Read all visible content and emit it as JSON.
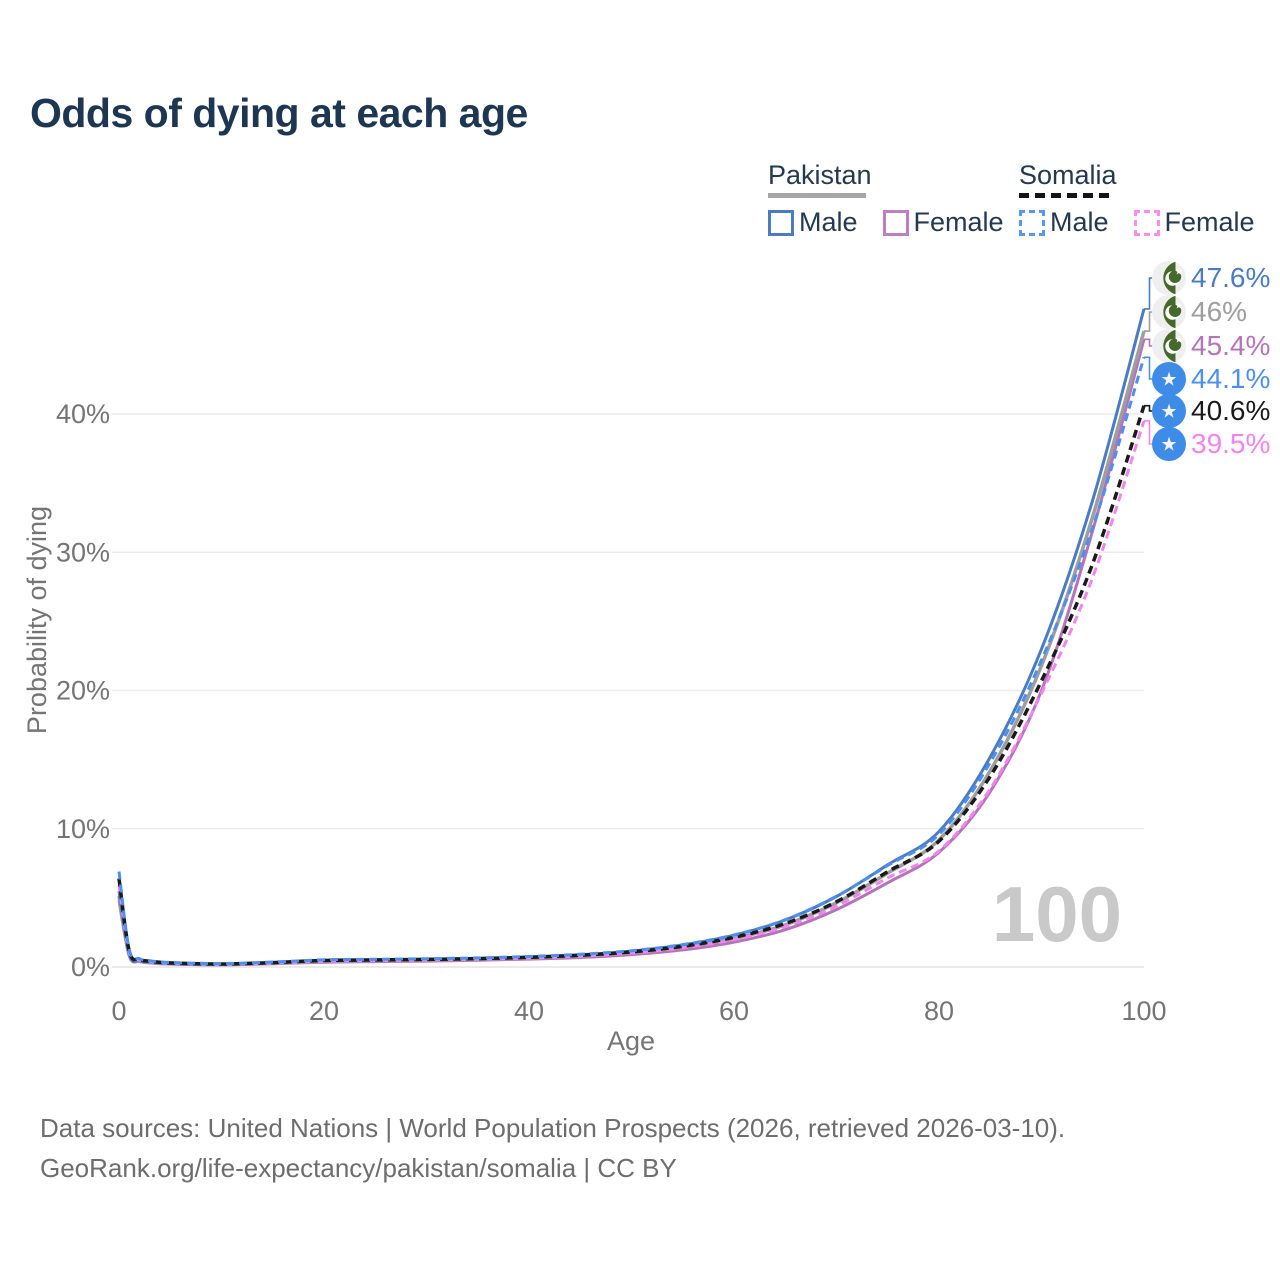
{
  "title": "Odds of dying at each age",
  "legend": {
    "groups": [
      {
        "country": "Pakistan",
        "style": "solid",
        "items": [
          {
            "label": "Male",
            "color": "#4a7cc4"
          },
          {
            "label": "Female",
            "color": "#bb80c2"
          }
        ]
      },
      {
        "country": "Somalia",
        "style": "dashed",
        "items": [
          {
            "label": "Male",
            "color": "#5796f2"
          },
          {
            "label": "Female",
            "color": "#fb8df2"
          }
        ]
      }
    ],
    "underline_colors": {
      "pakistan": "#a6a6a6",
      "somalia": "#151515"
    }
  },
  "chart_data": {
    "type": "line",
    "title": "Odds of dying at each age",
    "xlabel": "Age",
    "ylabel": "Probability of dying",
    "xlim": [
      0,
      100
    ],
    "ylim_percent": [
      0,
      48
    ],
    "grid": "horizontal",
    "legend_position": "top-right",
    "watermark": "100",
    "xticks": [
      "0",
      "20",
      "40",
      "60",
      "80",
      "100"
    ],
    "yticks": [
      "0%",
      "10%",
      "20%",
      "30%",
      "40%"
    ],
    "ages": [
      0,
      1,
      2,
      3,
      5,
      10,
      15,
      20,
      25,
      30,
      35,
      40,
      45,
      50,
      55,
      60,
      65,
      70,
      75,
      80,
      85,
      90,
      95,
      100
    ],
    "series": [
      {
        "name": "Pakistan Male",
        "country": "Pakistan",
        "sex": "male",
        "color": "#4a7cc4",
        "dash": false,
        "width": 3,
        "values_percent": [
          5.5,
          0.9,
          0.45,
          0.35,
          0.25,
          0.2,
          0.3,
          0.48,
          0.52,
          0.56,
          0.62,
          0.72,
          0.88,
          1.15,
          1.6,
          2.3,
          3.4,
          5.1,
          7.4,
          9.8,
          15.2,
          23.0,
          33.8,
          47.6
        ]
      },
      {
        "name": "Pakistan Total",
        "country": "Pakistan",
        "sex": "both",
        "color": "#9e9e9e",
        "dash": false,
        "width": 3.5,
        "values_percent": [
          5.15,
          0.85,
          0.42,
          0.32,
          0.23,
          0.18,
          0.27,
          0.42,
          0.46,
          0.5,
          0.56,
          0.65,
          0.79,
          1.03,
          1.42,
          2.05,
          3.05,
          4.65,
          6.8,
          9.2,
          14.2,
          21.8,
          32.6,
          46.0
        ]
      },
      {
        "name": "Pakistan Female",
        "country": "Pakistan",
        "sex": "female",
        "color": "#b573bd",
        "dash": false,
        "width": 3,
        "values_percent": [
          4.8,
          0.8,
          0.4,
          0.3,
          0.21,
          0.16,
          0.23,
          0.35,
          0.39,
          0.43,
          0.49,
          0.57,
          0.69,
          0.9,
          1.24,
          1.8,
          2.7,
          4.15,
          6.1,
          8.3,
          12.7,
          20.0,
          31.6,
          45.4
        ]
      },
      {
        "name": "Somalia Male",
        "country": "Somalia",
        "sex": "male",
        "color": "#4b90f0",
        "dash": true,
        "width": 3,
        "values_percent": [
          6.9,
          1.25,
          0.6,
          0.45,
          0.33,
          0.25,
          0.36,
          0.52,
          0.56,
          0.6,
          0.66,
          0.76,
          0.92,
          1.18,
          1.62,
          2.32,
          3.42,
          5.12,
          7.35,
          9.6,
          14.8,
          22.2,
          31.8,
          44.1
        ]
      },
      {
        "name": "Somalia Total",
        "country": "Somalia",
        "sex": "both",
        "color": "#1a1a1a",
        "dash": true,
        "width": 3.5,
        "values_percent": [
          6.4,
          1.15,
          0.55,
          0.42,
          0.3,
          0.22,
          0.32,
          0.47,
          0.51,
          0.55,
          0.61,
          0.7,
          0.85,
          1.09,
          1.5,
          2.15,
          3.15,
          4.72,
          6.9,
          9.1,
          13.8,
          20.7,
          29.2,
          40.6
        ]
      },
      {
        "name": "Somalia Female",
        "country": "Somalia",
        "sex": "female",
        "color": "#f583ef",
        "dash": true,
        "width": 3,
        "values_percent": [
          5.9,
          1.05,
          0.5,
          0.38,
          0.28,
          0.2,
          0.29,
          0.43,
          0.47,
          0.51,
          0.57,
          0.65,
          0.79,
          1.01,
          1.39,
          1.98,
          2.92,
          4.4,
          6.45,
          8.4,
          12.9,
          19.8,
          28.2,
          39.5
        ]
      }
    ],
    "end_labels": [
      {
        "text": "47.6%",
        "flag": "pakistan",
        "color": "#4a7cc4",
        "series": "Pakistan Male"
      },
      {
        "text": "46%",
        "flag": "pakistan",
        "color": "#9e9e9e",
        "series": "Pakistan Total"
      },
      {
        "text": "45.4%",
        "flag": "pakistan",
        "color": "#b573bd",
        "series": "Pakistan Female"
      },
      {
        "text": "44.1%",
        "flag": "somalia",
        "color": "#4b90f0",
        "series": "Somalia Male"
      },
      {
        "text": "40.6%",
        "flag": "somalia",
        "color": "#1a1a1a",
        "series": "Somalia Total"
      },
      {
        "text": "39.5%",
        "flag": "somalia",
        "color": "#f583ef",
        "series": "Somalia Female"
      }
    ]
  },
  "footer": {
    "line1": "Data sources: United Nations | World Population Prospects (2026, retrieved 2026-03-10).",
    "line2": "GeoRank.org/life-expectancy/pakistan/somalia | CC BY"
  }
}
